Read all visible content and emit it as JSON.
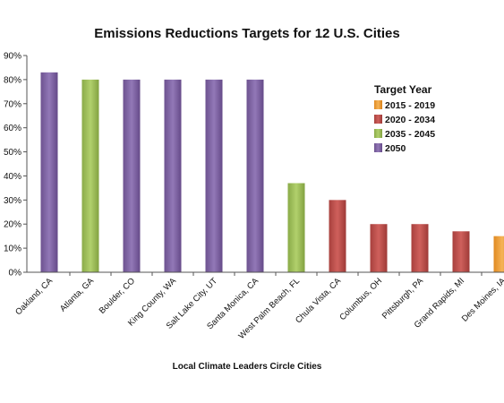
{
  "chart_data": {
    "type": "bar",
    "title": "Emissions Reductions Targets for 12 U.S. Cities",
    "xlabel": "Local Climate Leaders Circle Cities",
    "ylabel": "",
    "ylim": [
      0,
      90
    ],
    "yticks": [
      "0%",
      "10%",
      "20%",
      "30%",
      "40%",
      "50%",
      "60%",
      "70%",
      "80%",
      "90%"
    ],
    "grid": false,
    "legend_position": "top-right",
    "categories": [
      "Oakland, CA",
      "Atlanta, GA",
      "Boulder, CO",
      "King County, WA",
      "Salt Lake City, UT",
      "Santa Monica, CA",
      "West Palm Beach, FL",
      "Chula Vista, CA",
      "Columbus, OH",
      "Pittsburgh, PA",
      "Grand Rapids, MI",
      "Des Moines, IA"
    ],
    "values": [
      83,
      80,
      80,
      80,
      80,
      80,
      37,
      30,
      20,
      20,
      17,
      15
    ],
    "groups": [
      "2050",
      "2035 - 2045",
      "2050",
      "2050",
      "2050",
      "2050",
      "2035 - 2045",
      "2020 - 2034",
      "2020 - 2034",
      "2020 - 2034",
      "2020 - 2034",
      "2015 - 2019"
    ],
    "legend": {
      "title": "Target Year",
      "items": [
        {
          "label": "2015 - 2019",
          "color": "#f0a23a"
        },
        {
          "label": "2020 - 2034",
          "color": "#c0504d"
        },
        {
          "label": "2035 - 2045",
          "color": "#9bbb59"
        },
        {
          "label": "2050",
          "color": "#8064a2"
        }
      ]
    }
  }
}
